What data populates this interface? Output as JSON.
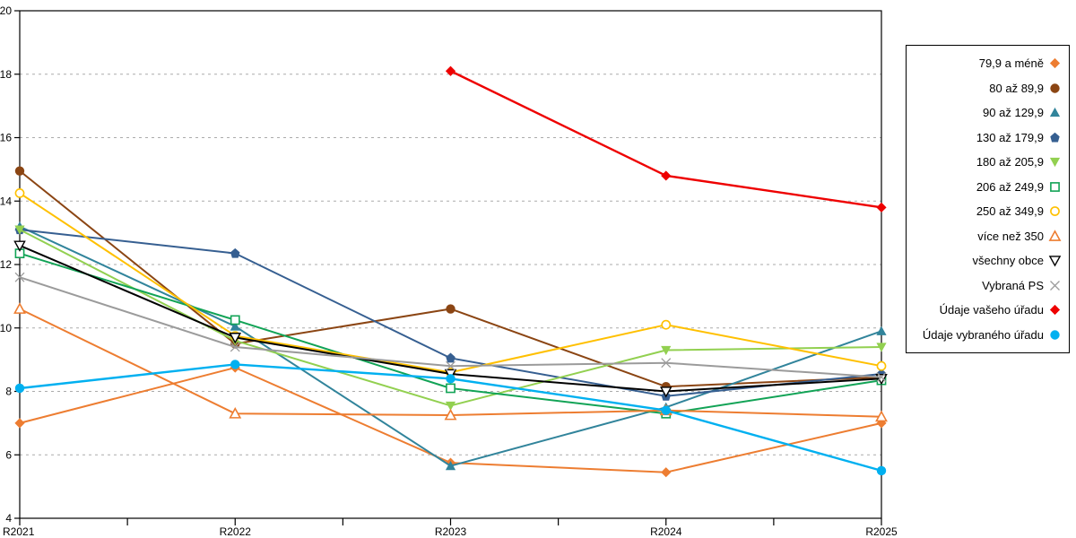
{
  "chart_data": {
    "type": "line",
    "title": "",
    "xlabel": "",
    "ylabel": "",
    "categories": [
      "R2021",
      "R2022",
      "R2023",
      "R2024",
      "R2025"
    ],
    "ylim": [
      4,
      20
    ],
    "yticks": [
      4,
      6,
      8,
      10,
      12,
      14,
      16,
      18,
      20
    ],
    "grid": "horizontal-dashed",
    "legend_position": "right",
    "series": [
      {
        "name": "79,9 a méně",
        "color": "#ED7D31",
        "marker": "diamond",
        "values": [
          7.0,
          8.75,
          5.75,
          5.45,
          7.0
        ]
      },
      {
        "name": "80 až 89,9",
        "color": "#8B4513",
        "marker": "circle",
        "values": [
          14.95,
          9.5,
          10.6,
          8.15,
          8.45
        ]
      },
      {
        "name": "90 až 129,9",
        "color": "#31849B",
        "marker": "triangle-up",
        "values": [
          13.2,
          10.05,
          5.65,
          7.5,
          9.9
        ]
      },
      {
        "name": "130 až 179,9",
        "color": "#365F91",
        "marker": "pentagon",
        "values": [
          13.1,
          12.35,
          9.05,
          7.85,
          8.55
        ]
      },
      {
        "name": "180 až 205,9",
        "color": "#92D050",
        "marker": "triangle-down",
        "values": [
          13.1,
          9.6,
          7.55,
          9.3,
          9.4
        ]
      },
      {
        "name": "206 až 249,9",
        "color": "#12A356",
        "marker": "square-open",
        "values": [
          12.35,
          10.25,
          8.1,
          7.3,
          8.35
        ]
      },
      {
        "name": "250 až 349,9",
        "color": "#FFC000",
        "marker": "circle-open",
        "values": [
          14.25,
          9.75,
          8.6,
          10.1,
          8.8
        ]
      },
      {
        "name": "více než 350",
        "color": "#ED7D31",
        "marker": "triangle-up-open",
        "values": [
          10.6,
          7.3,
          7.25,
          7.4,
          7.2
        ]
      },
      {
        "name": "všechny obce",
        "color": "#000000",
        "marker": "triangle-down-open",
        "values": [
          12.6,
          9.7,
          8.55,
          8.0,
          8.4
        ]
      },
      {
        "name": "Vybraná PS",
        "color": "#9B9B9B",
        "marker": "x",
        "values": [
          11.6,
          9.4,
          8.8,
          8.9,
          8.45
        ]
      },
      {
        "name": "Údaje vašeho úřadu",
        "color": "#EE0000",
        "marker": "diamond",
        "values": [
          null,
          null,
          18.1,
          14.8,
          13.8
        ]
      },
      {
        "name": "Údaje vybraného úřadu",
        "color": "#00B0F0",
        "marker": "circle",
        "values": [
          8.1,
          8.85,
          8.4,
          7.4,
          5.5
        ]
      }
    ]
  }
}
